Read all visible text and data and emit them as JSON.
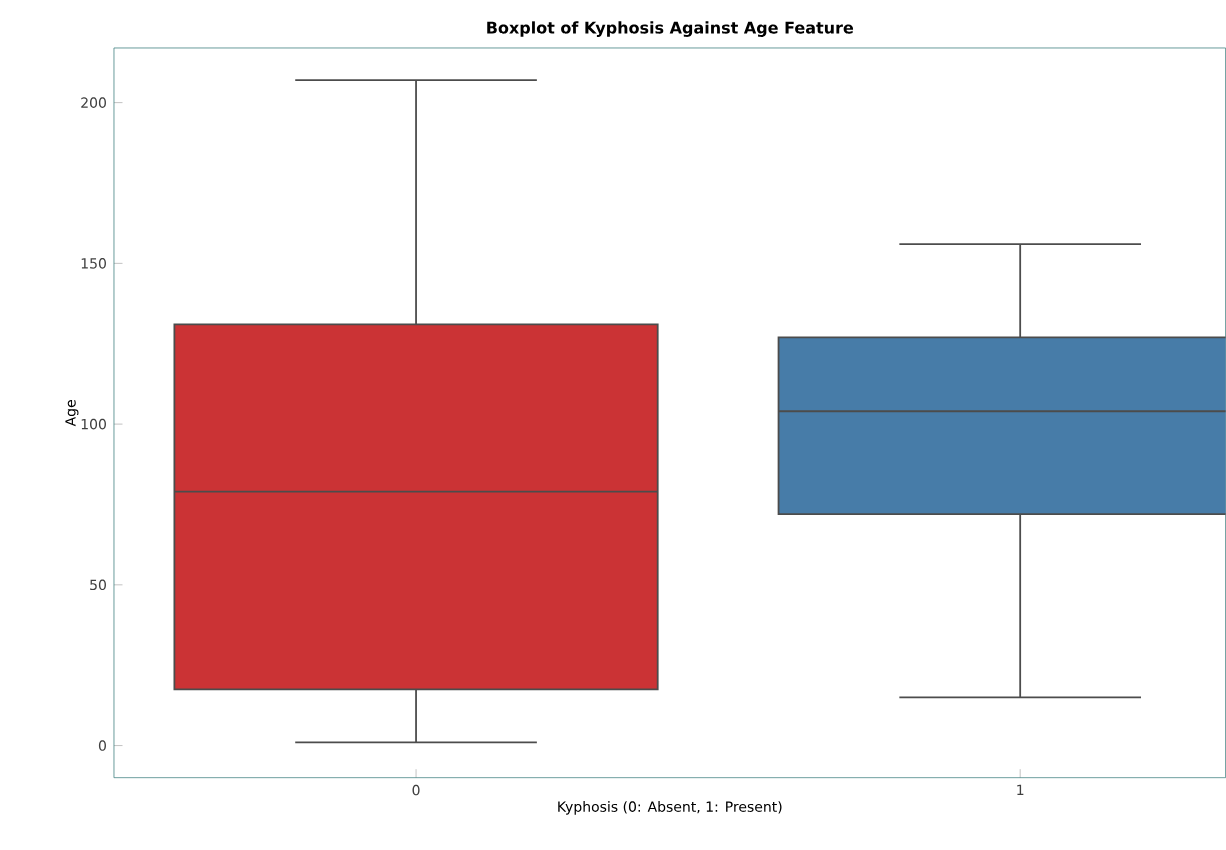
{
  "chart_data": {
    "type": "box",
    "title": "Boxplot of Kyphosis Against Age Feature",
    "xlabel": "Kyphosis (0: Absent, 1: Present)",
    "ylabel": "Age",
    "categories": [
      "0",
      "1"
    ],
    "colors": [
      "#cb3335",
      "#477ca8"
    ],
    "boxes": [
      {
        "low": 1,
        "q1": 17.5,
        "median": 79,
        "q3": 131,
        "high": 207
      },
      {
        "low": 15,
        "q1": 72,
        "median": 104,
        "q3": 127,
        "high": 156
      }
    ],
    "ylim": [
      -10,
      217
    ],
    "yticks": [
      0,
      50,
      100,
      150,
      200
    ]
  }
}
